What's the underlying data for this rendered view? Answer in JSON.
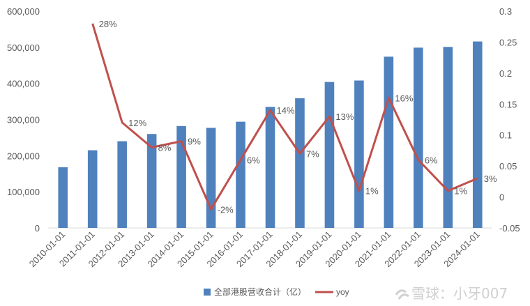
{
  "chart_data": {
    "type": "bar",
    "categories": [
      "2010-01-01",
      "2011-01-01",
      "2012-01-01",
      "2013-01-01",
      "2014-01-01",
      "2015-01-01",
      "2016-01-01",
      "2017-01-01",
      "2018-01-01",
      "2019-01-01",
      "2020-01-01",
      "2021-01-01",
      "2022-01-01",
      "2023-01-01",
      "2024-01-01"
    ],
    "series": [
      {
        "name": "全部港股营收合计（亿）",
        "type": "bar",
        "axis": "left",
        "color": "#4f81bd",
        "values": [
          168000,
          215000,
          240000,
          260000,
          282000,
          277000,
          294000,
          335000,
          359000,
          404000,
          408000,
          474000,
          499000,
          501000,
          516000
        ]
      },
      {
        "name": "yoy",
        "type": "line",
        "axis": "right",
        "color": "#c0504d",
        "values": [
          null,
          0.28,
          0.12,
          0.08,
          0.09,
          -0.02,
          0.06,
          0.14,
          0.07,
          0.13,
          0.01,
          0.16,
          0.06,
          0.01,
          0.03
        ],
        "labels": [
          null,
          "28%",
          "12%",
          "8%",
          "9%",
          "-2%",
          "6%",
          "14%",
          "7%",
          "13%",
          "1%",
          "16%",
          "6%",
          "1%",
          "3%"
        ]
      }
    ],
    "y_left": {
      "range": [
        0,
        600000
      ],
      "ticks": [
        0,
        100000,
        200000,
        300000,
        400000,
        500000,
        600000
      ],
      "tick_labels": [
        "0",
        "100,000",
        "200,000",
        "300,000",
        "400,000",
        "500,000",
        "600,000"
      ]
    },
    "y_right": {
      "range": [
        -0.05,
        0.3
      ],
      "ticks": [
        -0.05,
        0,
        0.05,
        0.1,
        0.15,
        0.2,
        0.25,
        0.3
      ],
      "tick_labels": [
        "-0.05",
        "0",
        "0.05",
        "0.1",
        "0.15",
        "0.2",
        "0.25",
        "0.3"
      ]
    },
    "legend_position": "bottom",
    "grid": false
  },
  "watermark": {
    "text": "雪球：小牙007"
  }
}
